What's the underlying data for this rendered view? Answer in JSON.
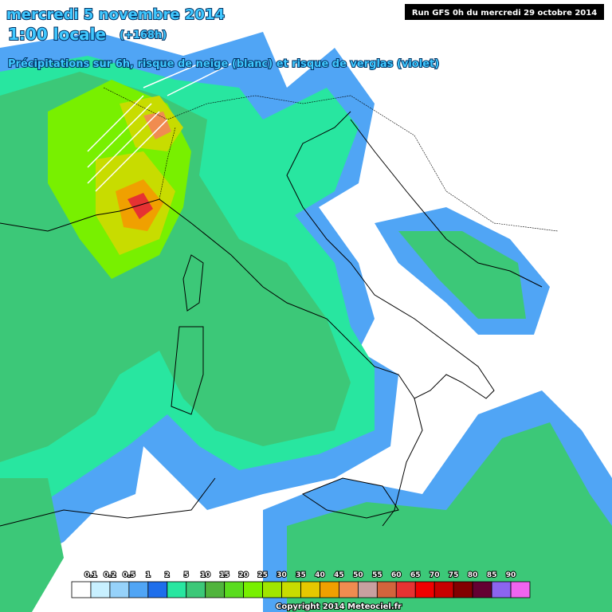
{
  "header": {
    "title": "mercredi 5 novembre 2014",
    "time": "1:00 locale",
    "lead": "(+168h)",
    "subtitle": "Précipitations sur 6h, risque de neige (blanc) et risque de verglas (violet)",
    "run": "Run GFS 0h du mercredi 29 octobre 2014"
  },
  "legend": {
    "labels": [
      "0.1",
      "0.2",
      "0.5",
      "1",
      "2",
      "5",
      "10",
      "15",
      "20",
      "25",
      "30",
      "35",
      "40",
      "45",
      "50",
      "55",
      "60",
      "65",
      "70",
      "75",
      "80",
      "85",
      "90"
    ],
    "colors": [
      "#ffffff",
      "#c8f0ff",
      "#96d2fa",
      "#50a5f5",
      "#1e6eeb",
      "#28e6a0",
      "#3cc878",
      "#50b43c",
      "#5adc1e",
      "#78f000",
      "#a0e600",
      "#c8dc00",
      "#e6c800",
      "#f0a000",
      "#f08c50",
      "#c8a0a0",
      "#d2643c",
      "#e63232",
      "#f00000",
      "#c80000",
      "#820000",
      "#640032",
      "#8c64f0",
      "#f064f0"
    ]
  },
  "footer": {
    "copyright": "Copyright 2014 Meteociel.fr"
  }
}
